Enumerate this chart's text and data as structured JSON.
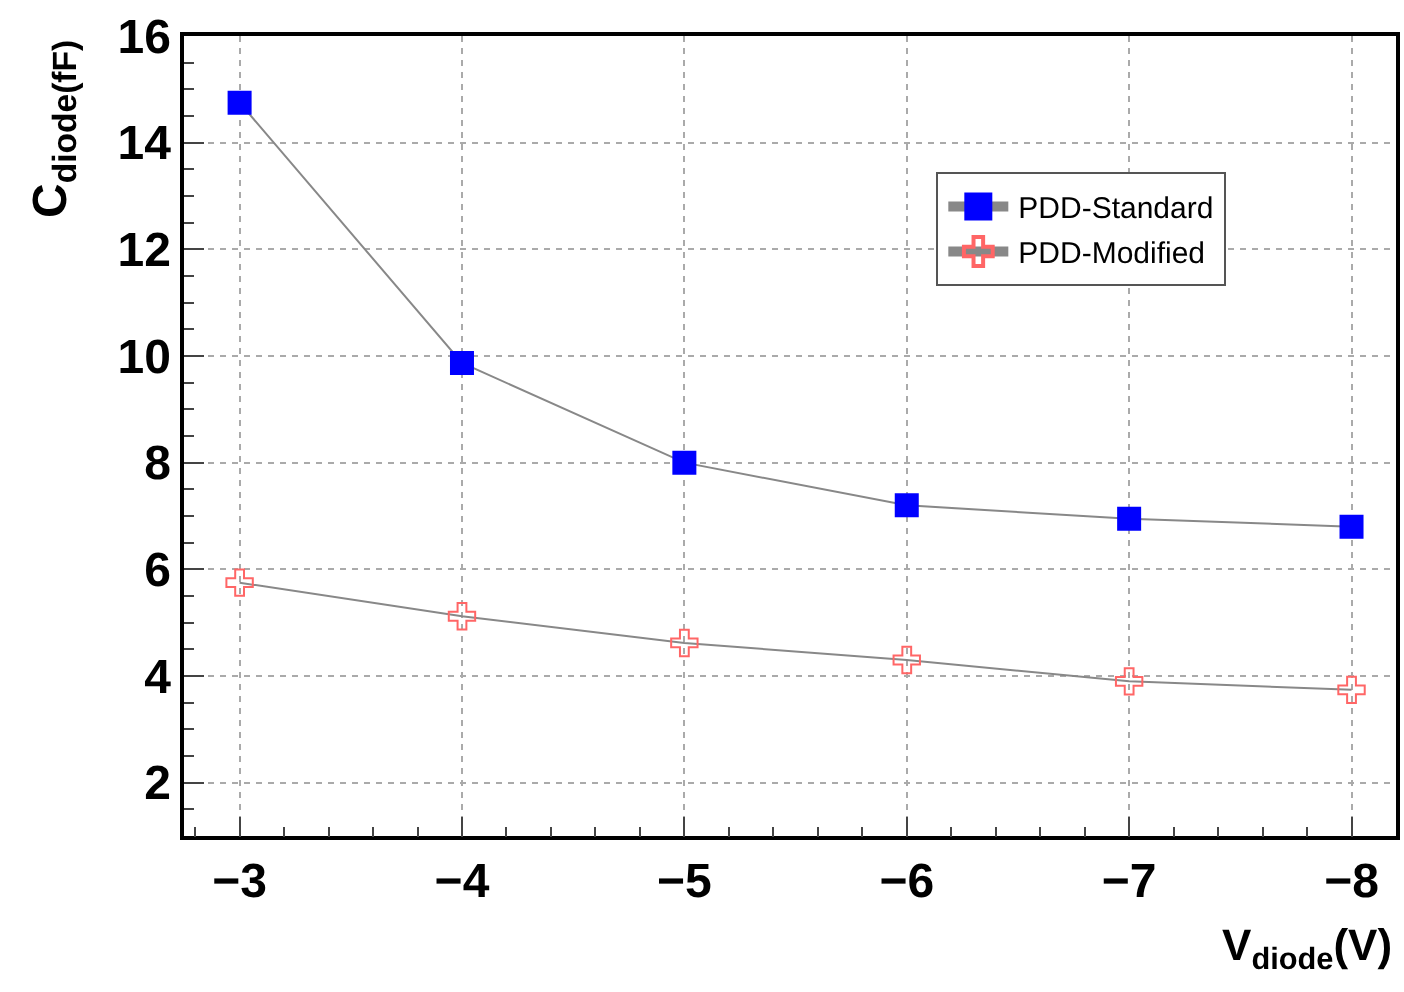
{
  "chart_data": {
    "type": "line",
    "x": [
      -3,
      -4,
      -5,
      -6,
      -7,
      -8
    ],
    "series": [
      {
        "name": "PDD-Standard",
        "color": "#0000ff",
        "marker": "square",
        "values": [
          14.75,
          9.87,
          8.0,
          7.2,
          6.95,
          6.8
        ]
      },
      {
        "name": "PDD-Modified",
        "color": "#ff6666",
        "marker": "cross",
        "values": [
          5.75,
          5.12,
          4.62,
          4.3,
          3.9,
          3.74
        ]
      }
    ],
    "xlabel": "V$_{diode}$(V)",
    "ylabel": "C$_{diode(fF)}$",
    "xlim": [
      -2.75,
      -8.2
    ],
    "ylim": [
      1,
      16
    ],
    "xticks": [
      {
        "value": -3,
        "label": "−3"
      },
      {
        "value": -4,
        "label": "−4"
      },
      {
        "value": -5,
        "label": "−5"
      },
      {
        "value": -6,
        "label": "−6"
      },
      {
        "value": -7,
        "label": "−7"
      },
      {
        "value": -8,
        "label": "−8"
      }
    ],
    "yticks": [
      2,
      4,
      6,
      8,
      10,
      12,
      14,
      16
    ],
    "grid": true,
    "legend": "top right",
    "line_style": "solid"
  }
}
